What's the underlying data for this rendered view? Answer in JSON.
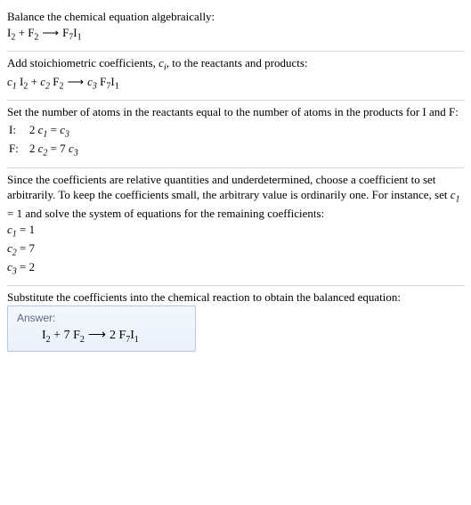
{
  "section1": {
    "title": "Balance the chemical equation algebraically:",
    "eq_lhs1": "I",
    "eq_lhs1_sub": "2",
    "eq_plus": " + ",
    "eq_lhs2": "F",
    "eq_lhs2_sub": "2",
    "arrow": "⟶",
    "eq_rhs": "F",
    "eq_rhs_sub1": "7",
    "eq_rhs2": "I",
    "eq_rhs_sub2": "1"
  },
  "section2": {
    "title_a": "Add stoichiometric coefficients, ",
    "title_ci": "c",
    "title_ci_sub": "i",
    "title_b": ", to the reactants and products:",
    "c1": "c",
    "c1_sub": "1",
    "sp": " ",
    "I": "I",
    "I_sub": "2",
    "plus": " + ",
    "c2": "c",
    "c2_sub": "2",
    "F": "F",
    "F_sub": "2",
    "arrow": "⟶",
    "c3": "c",
    "c3_sub": "3",
    "F7": "F",
    "F7_sub": "7",
    "I1": "I",
    "I1_sub": "1"
  },
  "section3": {
    "text": "Set the number of atoms in the reactants equal to the number of atoms in the products for I and F:",
    "row1_label": "I: ",
    "row1_eq_a": "2 ",
    "row1_c1": "c",
    "row1_c1_sub": "1",
    "row1_eq_b": " = ",
    "row1_c3": "c",
    "row1_c3_sub": "3",
    "row2_label": "F: ",
    "row2_eq_a": "2 ",
    "row2_c2": "c",
    "row2_c2_sub": "2",
    "row2_eq_b": " = 7 ",
    "row2_c3": "c",
    "row2_c3_sub": "3"
  },
  "section4": {
    "text_a": "Since the coefficients are relative quantities and underdetermined, choose a coefficient to set arbitrarily. To keep the coefficients small, the arbitrary value is ordinarily one. For instance, set ",
    "c1": "c",
    "c1_sub": "1",
    "eq1": " = 1",
    "text_b": " and solve the system of equations for the remaining coefficients:",
    "l1_c": "c",
    "l1_sub": "1",
    "l1_val": " = 1",
    "l2_c": "c",
    "l2_sub": "2",
    "l2_val": " = 7",
    "l3_c": "c",
    "l3_sub": "3",
    "l3_val": " = 2"
  },
  "section5": {
    "text": "Substitute the coefficients into the chemical reaction to obtain the balanced equation:",
    "answer_label": "Answer:",
    "I": "I",
    "I_sub": "2",
    "plus": " + 7 ",
    "F": "F",
    "F_sub": "2",
    "arrow": "⟶",
    "two": "2 ",
    "F7": "F",
    "F7_sub": "7",
    "I1": "I",
    "I1_sub": "1"
  }
}
